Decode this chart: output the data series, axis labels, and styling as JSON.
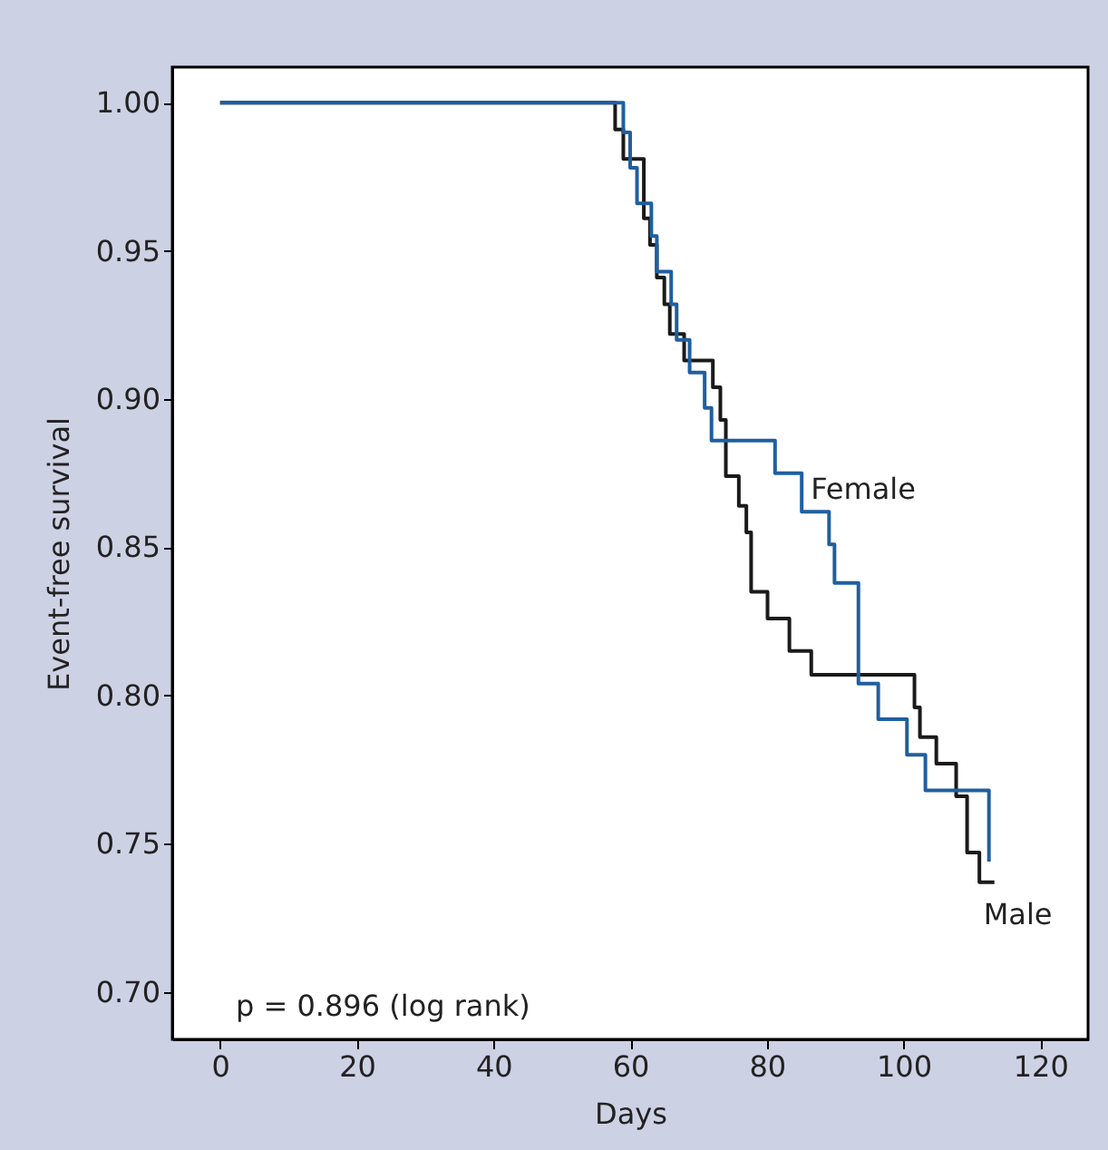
{
  "chart_data": {
    "type": "step",
    "xlabel": "Days",
    "ylabel": "Event-free survival",
    "annotations": [
      "p = 0.896 (log rank)"
    ],
    "series": [
      {
        "name": "Female",
        "color": "#1f5fa0",
        "x": [
          0,
          59,
          60,
          61,
          63.1,
          63.9,
          66,
          66.8,
          68.7,
          70.9,
          71.9,
          81.2,
          85.1,
          89.1,
          89.9,
          93.4,
          96.3,
          100.5,
          103.2,
          112.5
        ],
        "values": [
          1.0,
          0.99,
          0.978,
          0.966,
          0.955,
          0.943,
          0.932,
          0.92,
          0.909,
          0.897,
          0.886,
          0.875,
          0.862,
          0.851,
          0.838,
          0.804,
          0.792,
          0.78,
          0.768,
          0.744
        ]
      },
      {
        "name": "Male",
        "color": "#1a1a1a",
        "x": [
          0,
          57.8,
          59,
          62,
          62.9,
          63.9,
          65,
          65.8,
          67.9,
          72.1,
          73.2,
          74,
          75.9,
          77,
          77.7,
          80.1,
          83.3,
          86.5,
          101.6,
          102.4,
          104.8,
          107.7,
          109.3,
          111.1,
          113.3
        ],
        "values": [
          1.0,
          0.991,
          0.981,
          0.961,
          0.952,
          0.941,
          0.932,
          0.922,
          0.913,
          0.904,
          0.893,
          0.874,
          0.864,
          0.855,
          0.835,
          0.826,
          0.815,
          0.807,
          0.796,
          0.786,
          0.777,
          0.766,
          0.747,
          0.737,
          0.737
        ]
      }
    ],
    "xlim": [
      -7,
      127
    ],
    "xticks": [
      0,
      20,
      40,
      60,
      80,
      100,
      120
    ],
    "ylim": [
      0.684,
      1.012
    ],
    "yticks": [
      {
        "value": 0.7,
        "label": "0.70"
      },
      {
        "value": 0.75,
        "label": "0.75"
      },
      {
        "value": 0.8,
        "label": "0.80"
      },
      {
        "value": 0.85,
        "label": "0.85"
      },
      {
        "value": 0.9,
        "label": "0.90"
      },
      {
        "value": 0.95,
        "label": "0.95"
      },
      {
        "value": 1.0,
        "label": "1.00"
      }
    ],
    "grid": false,
    "legend": false
  }
}
